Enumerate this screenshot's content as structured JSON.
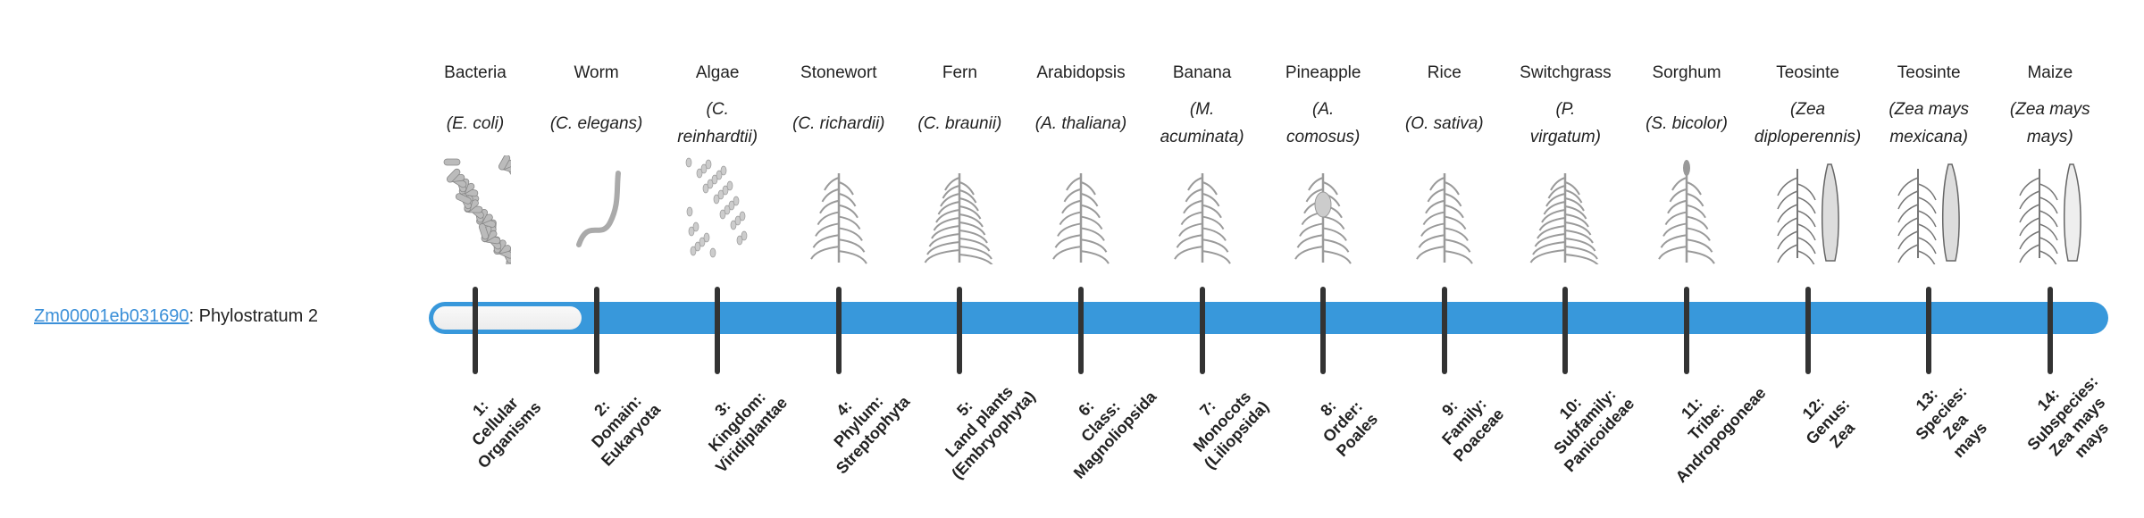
{
  "gene": {
    "id": "Zm00001eb031690",
    "suffix": ": Phylostratum 2"
  },
  "progress": {
    "current_stratum": 2,
    "total_strata": 14,
    "fill_color": "#3898db"
  },
  "columns": [
    {
      "common": "Bacteria",
      "species": [
        "(E. coli)"
      ],
      "icon": "bacteria-icon",
      "rank": [
        "1:",
        "Cellular",
        "Organisms"
      ]
    },
    {
      "common": "Worm",
      "species": [
        "(C. elegans)"
      ],
      "icon": "worm-icon",
      "rank": [
        "2:",
        "Domain:",
        "Eukaryota"
      ]
    },
    {
      "common": "Algae",
      "species": [
        "(C.",
        "reinhardtii)"
      ],
      "icon": "algae-icon",
      "rank": [
        "3:",
        "Kingdom:",
        "Viridiplantae"
      ]
    },
    {
      "common": "Stonewort",
      "species": [
        "(C. richardii)"
      ],
      "icon": "stonewort-icon",
      "rank": [
        "4:",
        "Phylum:",
        "Streptophyta"
      ]
    },
    {
      "common": "Fern",
      "species": [
        "(C. braunii)"
      ],
      "icon": "fern-icon",
      "rank": [
        "5:",
        "Land plants",
        "(Embryophyta)"
      ]
    },
    {
      "common": "Arabidopsis",
      "species": [
        "(A. thaliana)"
      ],
      "icon": "arabidopsis-icon",
      "rank": [
        "6:",
        "Class:",
        "Magnoliopsida"
      ]
    },
    {
      "common": "Banana",
      "species": [
        "(M.",
        "acuminata)"
      ],
      "icon": "banana-icon",
      "rank": [
        "7:",
        "Monocots",
        "(Liliopsida)"
      ]
    },
    {
      "common": "Pineapple",
      "species": [
        "(A.",
        "comosus)"
      ],
      "icon": "pineapple-icon",
      "rank": [
        "8:",
        "Order:",
        "Poales"
      ]
    },
    {
      "common": "Rice",
      "species": [
        "(O. sativa)"
      ],
      "icon": "rice-icon",
      "rank": [
        "9:",
        "Family:",
        "Poaceae"
      ]
    },
    {
      "common": "Switchgrass",
      "species": [
        "(P.",
        "virgatum)"
      ],
      "icon": "switchgrass-icon",
      "rank": [
        "10:",
        "Subfamily:",
        "Panicoideae"
      ]
    },
    {
      "common": "Sorghum",
      "species": [
        "(S. bicolor)"
      ],
      "icon": "sorghum-icon",
      "rank": [
        "11:",
        "Tribe:",
        "Andropogoneae"
      ]
    },
    {
      "common": "Teosinte",
      "species": [
        "(Zea",
        "diploperennis)"
      ],
      "icon": "teosinte-icon",
      "rank": [
        "12:",
        "Genus:",
        "Zea"
      ]
    },
    {
      "common": "Teosinte",
      "species": [
        "(Zea mays",
        "mexicana)"
      ],
      "icon": "teosinte-mexicana-icon",
      "rank": [
        "13:",
        "Species:",
        "Zea",
        "mays"
      ]
    },
    {
      "common": "Maize",
      "species": [
        "(Zea mays",
        "mays)"
      ],
      "icon": "maize-icon",
      "rank": [
        "14:",
        "Subspecies:",
        "Zea mays",
        "mays"
      ]
    }
  ]
}
